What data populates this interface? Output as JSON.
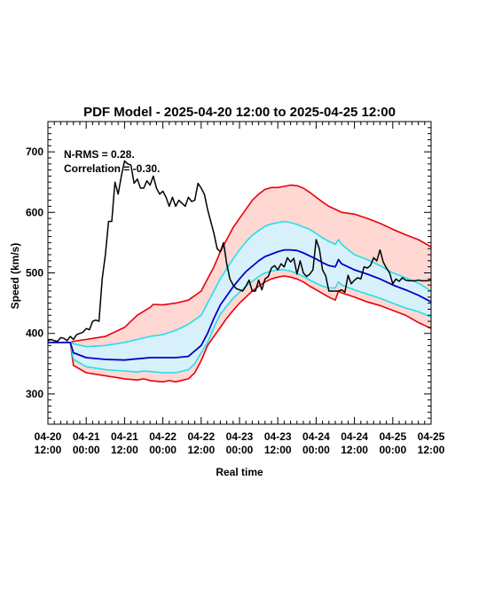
{
  "chart_data": {
    "type": "line",
    "title": "PDF Model - 2025-04-20 12:00 to 2025-04-25 12:00",
    "xlabel": "Real time",
    "ylabel": "Speed (km/s)",
    "xlim": [
      0,
      120
    ],
    "ylim": [
      250,
      750
    ],
    "y_ticks": [
      300,
      400,
      500,
      600,
      700
    ],
    "x_ticks": [
      {
        "x": 0,
        "date": "04-20",
        "time": "12:00"
      },
      {
        "x": 12,
        "date": "04-21",
        "time": "00:00"
      },
      {
        "x": 24,
        "date": "04-21",
        "time": "12:00"
      },
      {
        "x": 36,
        "date": "04-22",
        "time": "00:00"
      },
      {
        "x": 48,
        "date": "04-22",
        "time": "12:00"
      },
      {
        "x": 60,
        "date": "04-23",
        "time": "00:00"
      },
      {
        "x": 72,
        "date": "04-23",
        "time": "12:00"
      },
      {
        "x": 84,
        "date": "04-24",
        "time": "00:00"
      },
      {
        "x": 96,
        "date": "04-24",
        "time": "12:00"
      },
      {
        "x": 108,
        "date": "04-25",
        "time": "00:00"
      },
      {
        "x": 120,
        "date": "04-25",
        "time": "12:00"
      }
    ],
    "x_units": "hours since 04-20 12:00",
    "annotations": [
      "N-RMS = 0.28.",
      "Correlation = -0.30."
    ],
    "colors": {
      "outer_band_fill": "#ffd8d4",
      "inner_band_fill": "#d8f0fa",
      "outer": "#e8000a",
      "inner": "#22e0e8",
      "median": "#0000cc",
      "observed": "#000000"
    },
    "series": [
      {
        "role": "upper-outer",
        "x": [
          0,
          7,
          8,
          12,
          18,
          24,
          28,
          32,
          33,
          36,
          40,
          44,
          48,
          50,
          52,
          54,
          56,
          58,
          60,
          62,
          64,
          66,
          68,
          70,
          72,
          74,
          76,
          78,
          80,
          82,
          84,
          86,
          88,
          90,
          92,
          96,
          100,
          104,
          108,
          112,
          116,
          120
        ],
        "y": [
          385,
          385,
          387,
          390,
          395,
          410,
          430,
          443,
          448,
          447,
          450,
          455,
          470,
          490,
          510,
          535,
          555,
          575,
          590,
          605,
          620,
          630,
          638,
          641,
          641,
          643,
          645,
          644,
          640,
          633,
          625,
          617,
          610,
          605,
          600,
          597,
          590,
          582,
          572,
          563,
          555,
          543
        ]
      },
      {
        "role": "upper-inner",
        "x": [
          0,
          7,
          8,
          12,
          18,
          24,
          28,
          32,
          36,
          40,
          44,
          48,
          50,
          52,
          54,
          56,
          58,
          60,
          62,
          64,
          66,
          68,
          70,
          72,
          74,
          76,
          78,
          80,
          82,
          84,
          86,
          88,
          90,
          91,
          92,
          96,
          100,
          104,
          108,
          112,
          116,
          120
        ],
        "y": [
          385,
          385,
          383,
          378,
          380,
          385,
          390,
          395,
          398,
          405,
          415,
          430,
          450,
          470,
          490,
          507,
          523,
          538,
          551,
          562,
          570,
          577,
          581,
          583,
          585,
          583,
          580,
          576,
          572,
          565,
          558,
          552,
          547,
          555,
          547,
          530,
          522,
          512,
          500,
          492,
          483,
          470
        ]
      },
      {
        "role": "median",
        "x": [
          0,
          7,
          8,
          12,
          18,
          24,
          28,
          32,
          36,
          40,
          44,
          48,
          50,
          52,
          54,
          56,
          58,
          60,
          62,
          64,
          66,
          68,
          70,
          72,
          74,
          76,
          78,
          80,
          82,
          84,
          86,
          88,
          90,
          91,
          92,
          96,
          100,
          104,
          108,
          112,
          116,
          120
        ],
        "y": [
          385,
          385,
          368,
          360,
          357,
          356,
          358,
          360,
          360,
          360,
          362,
          380,
          400,
          425,
          447,
          462,
          477,
          490,
          502,
          511,
          520,
          527,
          531,
          535,
          538,
          538,
          537,
          533,
          528,
          523,
          517,
          512,
          510,
          522,
          515,
          505,
          498,
          490,
          480,
          472,
          463,
          452
        ]
      },
      {
        "role": "lower-inner",
        "x": [
          0,
          7,
          8,
          12,
          18,
          24,
          28,
          30,
          32,
          36,
          40,
          44,
          46,
          48,
          50,
          52,
          54,
          56,
          58,
          60,
          62,
          64,
          66,
          68,
          70,
          72,
          74,
          76,
          78,
          80,
          82,
          84,
          86,
          88,
          90,
          91,
          92,
          96,
          100,
          104,
          108,
          112,
          116,
          120
        ],
        "y": [
          385,
          385,
          357,
          345,
          340,
          338,
          336,
          338,
          337,
          335,
          335,
          340,
          350,
          368,
          385,
          410,
          432,
          445,
          458,
          468,
          478,
          486,
          494,
          500,
          503,
          505,
          505,
          503,
          499,
          494,
          488,
          483,
          478,
          475,
          475,
          485,
          480,
          472,
          465,
          458,
          450,
          442,
          436,
          427
        ]
      },
      {
        "role": "lower-outer",
        "x": [
          0,
          7,
          8,
          12,
          18,
          24,
          28,
          30,
          32,
          36,
          38,
          40,
          44,
          46,
          48,
          50,
          52,
          54,
          56,
          58,
          60,
          62,
          64,
          66,
          68,
          70,
          72,
          74,
          76,
          78,
          80,
          82,
          84,
          86,
          88,
          90,
          91,
          92,
          96,
          100,
          104,
          108,
          112,
          116,
          120
        ],
        "y": [
          385,
          385,
          347,
          335,
          330,
          325,
          323,
          325,
          322,
          320,
          322,
          320,
          325,
          335,
          355,
          380,
          395,
          410,
          425,
          438,
          450,
          460,
          470,
          478,
          485,
          490,
          493,
          495,
          493,
          490,
          485,
          478,
          472,
          466,
          460,
          455,
          470,
          467,
          460,
          452,
          446,
          438,
          430,
          418,
          408
        ]
      },
      {
        "role": "observed",
        "x": [
          0,
          1,
          2,
          3,
          4,
          5,
          6,
          7,
          8,
          9,
          10,
          11,
          12,
          13,
          14,
          15,
          16,
          17,
          18,
          19,
          20,
          21,
          22,
          23,
          24,
          25,
          26,
          27,
          28,
          29,
          30,
          31,
          32,
          33,
          34,
          35,
          36,
          37,
          38,
          39,
          40,
          41,
          42,
          43,
          44,
          45,
          46,
          47,
          48,
          49,
          50,
          51,
          52,
          53,
          54,
          55,
          56,
          57,
          58,
          59,
          60,
          61,
          62,
          63,
          64,
          65,
          66,
          67,
          68,
          69,
          70,
          71,
          72,
          73,
          74,
          75,
          76,
          77,
          78,
          79,
          80,
          81,
          82,
          83,
          84,
          85,
          86,
          87,
          88,
          89,
          90,
          91,
          92,
          93,
          94,
          95,
          96,
          97,
          98,
          99,
          100,
          101,
          102,
          103,
          104,
          105,
          106,
          107,
          108,
          109,
          110,
          111,
          112,
          113,
          114,
          115,
          116,
          117,
          118,
          119,
          120
        ],
        "y": [
          388,
          390,
          388,
          387,
          393,
          392,
          388,
          395,
          390,
          398,
          400,
          402,
          408,
          406,
          420,
          422,
          420,
          490,
          530,
          585,
          585,
          650,
          630,
          660,
          685,
          680,
          678,
          648,
          655,
          640,
          640,
          652,
          645,
          660,
          640,
          630,
          635,
          625,
          610,
          625,
          610,
          620,
          615,
          610,
          625,
          618,
          620,
          648,
          640,
          630,
          605,
          585,
          565,
          540,
          535,
          550,
          515,
          490,
          480,
          474,
          472,
          470,
          478,
          488,
          470,
          470,
          488,
          472,
          490,
          494,
          508,
          512,
          505,
          515,
          510,
          525,
          518,
          524,
          498,
          520,
          500,
          494,
          498,
          505,
          555,
          540,
          505,
          495,
          470,
          470,
          470,
          470,
          472,
          468,
          496,
          482,
          488,
          492,
          490,
          510,
          508,
          512,
          525,
          520,
          538,
          518,
          508,
          500,
          482,
          490,
          486,
          492,
          488,
          487,
          487,
          487,
          488,
          487,
          487,
          487,
          488
        ]
      }
    ]
  }
}
